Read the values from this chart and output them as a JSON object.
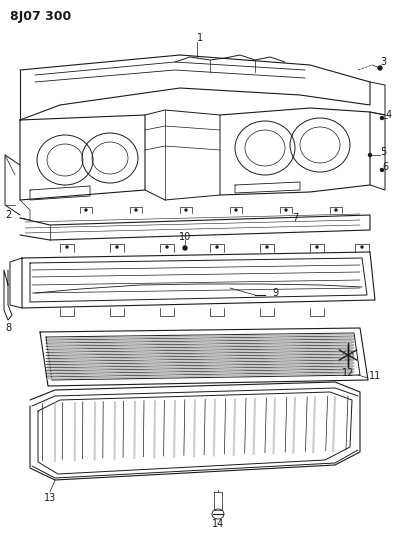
{
  "title": "8J07 300",
  "background_color": "#ffffff",
  "line_color": "#1a1a1a",
  "fig_width": 3.93,
  "fig_height": 5.33,
  "dpi": 100,
  "gray": "#888888",
  "darkgray": "#555555"
}
